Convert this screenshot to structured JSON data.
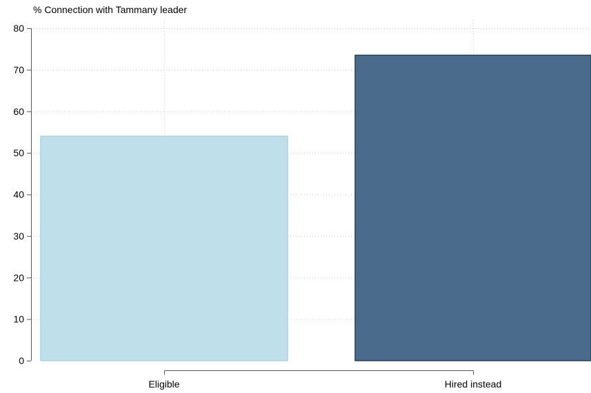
{
  "chart_data": {
    "type": "bar",
    "title": "% Connection with Tammany leader",
    "xlabel": "",
    "ylabel": "",
    "categories": [
      "Eligible",
      "Hired instead"
    ],
    "values": [
      54,
      73.5
    ],
    "ylim": [
      0,
      80
    ],
    "yticks": [
      0,
      10,
      20,
      30,
      40,
      50,
      60,
      70,
      80
    ],
    "grid": true,
    "bar_colors": [
      "#bfe0ea",
      "#4a6b8c"
    ],
    "bar_edge_colors": [
      "#a9d3e0",
      "#1f3d5a"
    ]
  }
}
